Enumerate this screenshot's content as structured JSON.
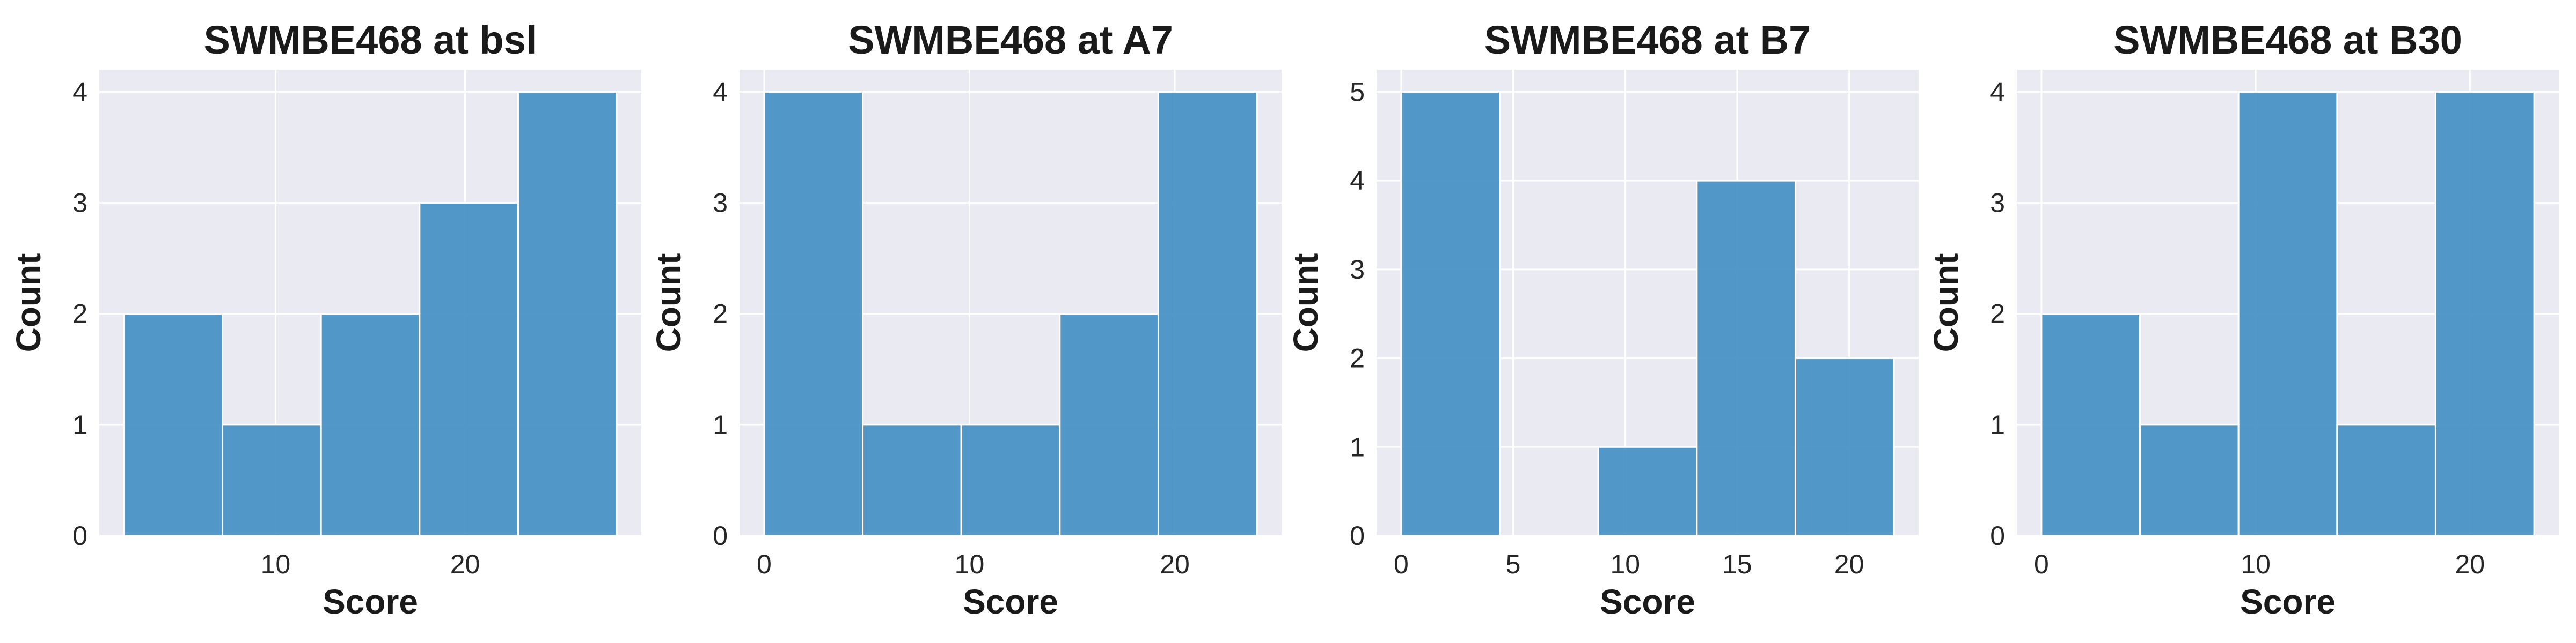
{
  "figure": {
    "background": "#ffffff"
  },
  "style": {
    "bar_color": "#3b8bc0",
    "plot_background": "#eaeaf2",
    "grid_color": "#ffffff"
  },
  "chart_data": [
    {
      "type": "histogram",
      "title": "SWMBE468 at bsl",
      "xlabel": "Score",
      "ylabel": "Count",
      "bins": [
        {
          "x0": 2,
          "x1": 7.2,
          "count": 2
        },
        {
          "x0": 7.2,
          "x1": 12.4,
          "count": 1
        },
        {
          "x0": 12.4,
          "x1": 17.6,
          "count": 2
        },
        {
          "x0": 17.6,
          "x1": 22.8,
          "count": 3
        },
        {
          "x0": 22.8,
          "x1": 28,
          "count": 4
        }
      ],
      "xlim": [
        0.7,
        29.3
      ],
      "ylim": [
        0,
        4.2
      ],
      "xticks": [
        10,
        20
      ],
      "yticks": [
        0,
        1,
        2,
        3,
        4
      ],
      "grid": true
    },
    {
      "type": "histogram",
      "title": "SWMBE468 at A7",
      "xlabel": "Score",
      "ylabel": "Count",
      "bins": [
        {
          "x0": 0,
          "x1": 4.8,
          "count": 4
        },
        {
          "x0": 4.8,
          "x1": 9.6,
          "count": 1
        },
        {
          "x0": 9.6,
          "x1": 14.4,
          "count": 1
        },
        {
          "x0": 14.4,
          "x1": 19.2,
          "count": 2
        },
        {
          "x0": 19.2,
          "x1": 24,
          "count": 4
        }
      ],
      "xlim": [
        -1.2,
        25.2
      ],
      "ylim": [
        0,
        4.2
      ],
      "xticks": [
        0,
        10,
        20
      ],
      "yticks": [
        0,
        1,
        2,
        3,
        4
      ],
      "grid": true
    },
    {
      "type": "histogram",
      "title": "SWMBE468 at B7",
      "xlabel": "Score",
      "ylabel": "Count",
      "bins": [
        {
          "x0": 0,
          "x1": 4.4,
          "count": 5
        },
        {
          "x0": 4.4,
          "x1": 8.8,
          "count": 0
        },
        {
          "x0": 8.8,
          "x1": 13.2,
          "count": 1
        },
        {
          "x0": 13.2,
          "x1": 17.6,
          "count": 4
        },
        {
          "x0": 17.6,
          "x1": 22,
          "count": 2
        }
      ],
      "xlim": [
        -1.1,
        23.1
      ],
      "ylim": [
        0,
        5.25
      ],
      "xticks": [
        0,
        5,
        10,
        15,
        20
      ],
      "yticks": [
        0,
        1,
        2,
        3,
        4,
        5
      ],
      "grid": true
    },
    {
      "type": "histogram",
      "title": "SWMBE468 at B30",
      "xlabel": "Score",
      "ylabel": "Count",
      "bins": [
        {
          "x0": 0,
          "x1": 4.6,
          "count": 2
        },
        {
          "x0": 4.6,
          "x1": 9.2,
          "count": 1
        },
        {
          "x0": 9.2,
          "x1": 13.8,
          "count": 4
        },
        {
          "x0": 13.8,
          "x1": 18.4,
          "count": 1
        },
        {
          "x0": 18.4,
          "x1": 23,
          "count": 4
        }
      ],
      "xlim": [
        -1.15,
        24.15
      ],
      "ylim": [
        0,
        4.2
      ],
      "xticks": [
        0,
        10,
        20
      ],
      "yticks": [
        0,
        1,
        2,
        3,
        4
      ],
      "grid": true
    }
  ]
}
